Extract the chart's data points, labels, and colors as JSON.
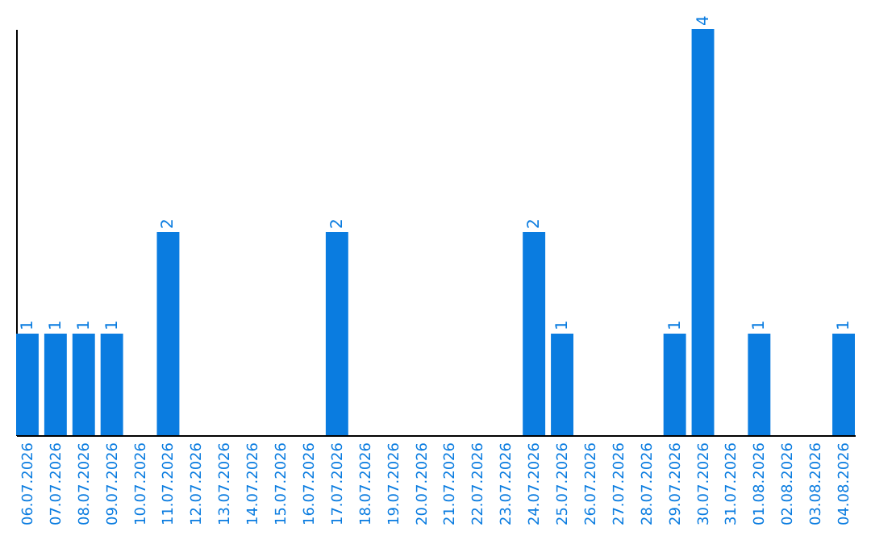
{
  "chart_data": {
    "type": "bar",
    "categories": [
      "06.07.2026",
      "07.07.2026",
      "08.07.2026",
      "09.07.2026",
      "10.07.2026",
      "11.07.2026",
      "12.07.2026",
      "13.07.2026",
      "14.07.2026",
      "15.07.2026",
      "16.07.2026",
      "17.07.2026",
      "18.07.2026",
      "19.07.2026",
      "20.07.2026",
      "21.07.2026",
      "22.07.2026",
      "23.07.2026",
      "24.07.2026",
      "25.07.2026",
      "26.07.2026",
      "27.07.2026",
      "28.07.2026",
      "29.07.2026",
      "30.07.2026",
      "31.07.2026",
      "01.08.2026",
      "02.08.2026",
      "03.08.2026",
      "04.08.2026"
    ],
    "values": [
      1,
      1,
      1,
      1,
      0,
      2,
      0,
      0,
      0,
      0,
      0,
      2,
      0,
      0,
      0,
      0,
      0,
      0,
      2,
      1,
      0,
      0,
      0,
      1,
      4,
      0,
      1,
      0,
      0,
      1
    ],
    "value_labels": [
      "1",
      "1",
      "1",
      "1",
      null,
      "2",
      null,
      null,
      null,
      null,
      null,
      "2",
      null,
      null,
      null,
      null,
      null,
      null,
      "2",
      "1",
      null,
      null,
      null,
      "1",
      "4",
      null,
      "1",
      null,
      null,
      "1"
    ],
    "color": "#0a7ce0",
    "tick_labels": "x",
    "grid": false
  }
}
